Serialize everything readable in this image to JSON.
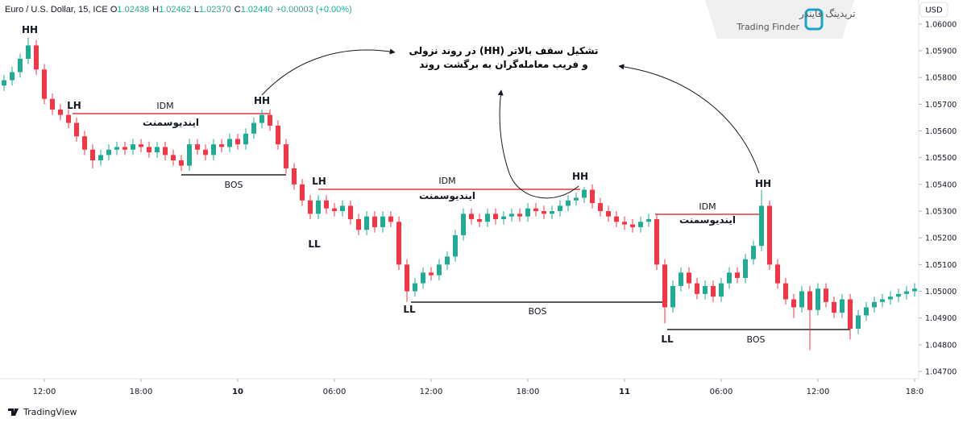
{
  "header": {
    "symbol": "Euro / U.S. Dollar, 15, ICE",
    "ohlc": [
      {
        "label": "O",
        "value": "1.02438"
      },
      {
        "label": "H",
        "value": "1.02462"
      },
      {
        "label": "L",
        "value": "1.02370"
      },
      {
        "label": "C",
        "value": "1.02440"
      }
    ],
    "change": "+0.00003 (+0.00%)"
  },
  "currency": "USD",
  "logo": {
    "fa": "تریدینگ فایندر",
    "en": "Trading Finder"
  },
  "footer": "TradingView",
  "chart_data": {
    "type": "candlestick",
    "up_color": "#22ab94",
    "down_color": "#f23645",
    "note": [
      "تشکیل سقف بالاتر (HH) در روند نزولی",
      "و فریب معامله‌گران به برگشت روند"
    ],
    "annotations": [
      "HH",
      "LH",
      "IDM",
      "ایندیوسمنت",
      "HH",
      "BOS",
      "LH",
      "LL",
      "IDM",
      "ایندیوسمنت",
      "HH",
      "LL",
      "BOS",
      "HH",
      "IDM",
      "ایندیوسمنت",
      "LL",
      "BOS"
    ],
    "xlim": [
      -2.75,
      54.25
    ],
    "xticks": [
      {
        "value": 0,
        "label": "12:00"
      },
      {
        "value": 6,
        "label": "18:00"
      },
      10,
      {
        "value": 18,
        "label": "06:00"
      },
      {
        "value": 24,
        "label": "12:00"
      },
      {
        "value": 30,
        "label": "18:00"
      },
      11,
      {
        "value": 42,
        "label": "06:00"
      },
      {
        "value": 48,
        "label": "12:00"
      },
      {
        "value": 54,
        "label": "18:0"
      }
    ],
    "ylim": [
      1.04673,
      1.0609
    ],
    "yticks": [
      {
        "value": 1.06,
        "label": "1.06000"
      },
      {
        "value": 1.059,
        "label": "1.05900"
      },
      {
        "value": 1.058,
        "label": "1.05800"
      },
      {
        "value": 1.057,
        "label": "1.05700"
      },
      {
        "value": 1.056,
        "label": "1.05600"
      },
      {
        "value": 1.055,
        "label": "1.05500"
      },
      {
        "value": 1.054,
        "label": "1.05400"
      },
      {
        "value": 1.053,
        "label": "1.05300"
      },
      {
        "value": 1.052,
        "label": "1.05200"
      },
      {
        "value": 1.051,
        "label": "1.05100"
      },
      {
        "value": 1.05,
        "label": "1.05000"
      },
      {
        "value": 1.049,
        "label": "1.04900"
      },
      {
        "value": 1.048,
        "label": "1.04800"
      },
      {
        "value": 1.047,
        "label": "1.04700"
      }
    ],
    "x": [
      -2.5,
      -2,
      -1.5,
      -1,
      -0.5,
      0,
      0.5,
      1,
      1.5,
      2,
      2.5,
      3,
      3.5,
      4,
      4.5,
      5,
      5.5,
      6,
      6.5,
      7,
      7.5,
      8,
      8.5,
      9,
      9.5,
      10,
      10.5,
      11,
      11.5,
      12,
      12.5,
      13,
      13.5,
      14,
      14.5,
      15,
      15.5,
      16,
      16.5,
      17,
      17.5,
      18,
      18.5,
      19,
      19.5,
      20,
      20.5,
      21,
      21.5,
      22,
      22.5,
      23,
      23.5,
      24,
      24.5,
      25,
      25.5,
      26,
      26.5,
      27,
      27.5,
      28,
      28.5,
      29,
      29.5,
      30,
      30.5,
      31,
      31.5,
      32,
      32.5,
      33,
      33.5,
      34,
      34.5,
      35,
      35.5,
      36,
      36.5,
      37,
      37.5,
      38,
      38.5,
      39,
      39.5,
      40,
      40.5,
      41,
      41.5,
      42,
      42.5,
      43,
      43.5,
      44,
      44.5,
      45,
      45.5,
      46,
      46.5,
      47,
      47.5,
      48,
      48.5,
      49,
      49.5,
      50,
      50.5,
      51,
      51.5,
      52,
      52.5,
      53,
      53.5,
      54
    ],
    "open": [
      1.0577,
      1.0579,
      1.0582,
      1.0587,
      1.0592,
      1.0583,
      1.0572,
      1.0568,
      1.0566,
      1.0563,
      1.0558,
      1.0553,
      1.0549,
      1.0551,
      1.0553,
      1.0554,
      1.0553,
      1.0555,
      1.0554,
      1.0552,
      1.0554,
      1.0551,
      1.0549,
      1.0547,
      1.0555,
      1.0553,
      1.0551,
      1.0555,
      1.0554,
      1.0557,
      1.0555,
      1.0559,
      1.0563,
      1.0566,
      1.0562,
      1.0555,
      1.0546,
      1.054,
      1.0534,
      1.0529,
      1.0534,
      1.0531,
      1.053,
      1.0532,
      1.0527,
      1.0523,
      1.0528,
      1.0524,
      1.0528,
      1.0526,
      1.051,
      1.05,
      1.0503,
      1.0507,
      1.0506,
      1.051,
      1.0513,
      1.0521,
      1.0529,
      1.0527,
      1.0526,
      1.0529,
      1.0527,
      1.0528,
      1.0529,
      1.0528,
      1.0531,
      1.053,
      1.0529,
      1.053,
      1.0532,
      1.0534,
      1.0535,
      1.0538,
      1.0533,
      1.053,
      1.0528,
      1.0526,
      1.0525,
      1.0524,
      1.0526,
      1.0527,
      1.051,
      1.0494,
      1.0502,
      1.0507,
      1.0503,
      1.0499,
      1.0502,
      1.0498,
      1.0503,
      1.0507,
      1.0505,
      1.0512,
      1.0517,
      1.0532,
      1.051,
      1.0503,
      1.0497,
      1.0494,
      1.05,
      1.0493,
      1.0501,
      1.0496,
      1.0492,
      1.0497,
      1.0486,
      1.0491,
      1.0494,
      1.0496,
      1.0497,
      1.0498,
      1.0499,
      1.05
    ],
    "high": [
      1.0581,
      1.0584,
      1.0589,
      1.0595,
      1.0594,
      1.0585,
      1.0574,
      1.057,
      1.0568,
      1.0565,
      1.056,
      1.0555,
      1.0553,
      1.0555,
      1.0556,
      1.0556,
      1.0557,
      1.0557,
      1.0556,
      1.0556,
      1.0556,
      1.0553,
      1.0551,
      1.0557,
      1.0557,
      1.0555,
      1.0557,
      1.0557,
      1.0559,
      1.0559,
      1.0561,
      1.0565,
      1.0568,
      1.0568,
      1.0564,
      1.0557,
      1.0548,
      1.0542,
      1.0536,
      1.0536,
      1.0536,
      1.0533,
      1.0534,
      1.0534,
      1.0529,
      1.053,
      1.053,
      1.053,
      1.053,
      1.0528,
      1.0512,
      1.0505,
      1.0509,
      1.0509,
      1.0512,
      1.0515,
      1.0523,
      1.0531,
      1.0531,
      1.0529,
      1.0531,
      1.0531,
      1.053,
      1.0531,
      1.0531,
      1.0533,
      1.0533,
      1.0532,
      1.0532,
      1.0534,
      1.0536,
      1.0537,
      1.0539,
      1.054,
      1.0535,
      1.0532,
      1.053,
      1.0528,
      1.0527,
      1.0528,
      1.0529,
      1.0529,
      1.0512,
      1.0504,
      1.0509,
      1.0509,
      1.0505,
      1.0504,
      1.0504,
      1.0505,
      1.0509,
      1.0509,
      1.0514,
      1.0519,
      1.0538,
      1.0534,
      1.0512,
      1.0505,
      1.0499,
      1.0502,
      1.0502,
      1.0503,
      1.0503,
      1.0498,
      1.0499,
      1.0499,
      1.0493,
      1.0496,
      1.0498,
      1.0499,
      1.05,
      1.0501,
      1.0502,
      1.0503
    ],
    "low": [
      1.0575,
      1.0577,
      1.058,
      1.0585,
      1.0581,
      1.057,
      1.0566,
      1.0564,
      1.0561,
      1.0556,
      1.0551,
      1.0546,
      1.0547,
      1.0549,
      1.0551,
      1.0551,
      1.0551,
      1.0552,
      1.055,
      1.055,
      1.0549,
      1.0547,
      1.0545,
      1.0545,
      1.0551,
      1.0549,
      1.0549,
      1.0552,
      1.0552,
      1.0553,
      1.0553,
      1.0557,
      1.0561,
      1.056,
      1.0553,
      1.0544,
      1.0538,
      1.0532,
      1.0527,
      1.0527,
      1.0529,
      1.0528,
      1.0528,
      1.0525,
      1.0521,
      1.0521,
      1.0522,
      1.0522,
      1.0524,
      1.0508,
      1.0496,
      1.0498,
      1.0501,
      1.0504,
      1.0504,
      1.0508,
      1.0511,
      1.0519,
      1.0525,
      1.0524,
      1.0524,
      1.0525,
      1.0525,
      1.0526,
      1.0526,
      1.0526,
      1.0528,
      1.0527,
      1.0527,
      1.0528,
      1.053,
      1.0532,
      1.0533,
      1.0531,
      1.0528,
      1.0526,
      1.0524,
      1.0523,
      1.0522,
      1.0522,
      1.0524,
      1.0508,
      1.0488,
      1.0492,
      1.05,
      1.0501,
      1.0497,
      1.0497,
      1.0496,
      1.0496,
      1.0501,
      1.0503,
      1.0503,
      1.051,
      1.0515,
      1.0508,
      1.0501,
      1.0495,
      1.049,
      1.0492,
      1.0478,
      1.0491,
      1.0494,
      1.049,
      1.049,
      1.0482,
      1.0484,
      1.0489,
      1.0492,
      1.0494,
      1.0495,
      1.0496,
      1.0497,
      1.0498
    ],
    "close": [
      1.0579,
      1.0582,
      1.0587,
      1.0592,
      1.0583,
      1.0572,
      1.0568,
      1.0566,
      1.0563,
      1.0558,
      1.0553,
      1.0549,
      1.0551,
      1.0553,
      1.0554,
      1.0553,
      1.0555,
      1.0554,
      1.0552,
      1.0554,
      1.0551,
      1.0549,
      1.0547,
      1.0555,
      1.0553,
      1.0551,
      1.0555,
      1.0554,
      1.0557,
      1.0555,
      1.0559,
      1.0563,
      1.0566,
      1.0562,
      1.0555,
      1.0546,
      1.054,
      1.0534,
      1.0529,
      1.0534,
      1.0531,
      1.053,
      1.0532,
      1.0527,
      1.0523,
      1.0528,
      1.0524,
      1.0528,
      1.0526,
      1.051,
      1.05,
      1.0503,
      1.0507,
      1.0506,
      1.051,
      1.0513,
      1.0521,
      1.0529,
      1.0527,
      1.0526,
      1.0529,
      1.0527,
      1.0528,
      1.0529,
      1.0528,
      1.0531,
      1.053,
      1.0529,
      1.053,
      1.0532,
      1.0534,
      1.0535,
      1.0538,
      1.0533,
      1.053,
      1.0528,
      1.0526,
      1.0525,
      1.0524,
      1.0526,
      1.0527,
      1.051,
      1.0494,
      1.0502,
      1.0507,
      1.0503,
      1.0499,
      1.0502,
      1.0498,
      1.0503,
      1.0507,
      1.0505,
      1.0512,
      1.0517,
      1.0532,
      1.051,
      1.0503,
      1.0497,
      1.0494,
      1.05,
      1.0493,
      1.0501,
      1.0496,
      1.0492,
      1.0497,
      1.0486,
      1.0491,
      1.0494,
      1.0496,
      1.0497,
      1.0498,
      1.0499,
      1.05,
      1.0501
    ]
  }
}
